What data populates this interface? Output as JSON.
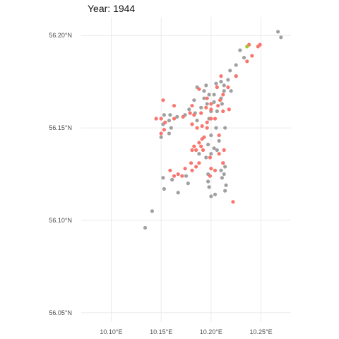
{
  "chart_data": {
    "type": "scatter",
    "title": "Year: 1944",
    "xlabel": "",
    "ylabel": "",
    "xlim": [
      10.07,
      10.28
    ],
    "ylim": [
      56.045,
      56.21
    ],
    "x_ticks": [
      10.1,
      10.15,
      10.2,
      10.25
    ],
    "x_tick_labels": [
      "10.10°E",
      "10.15°E",
      "10.20°E",
      "10.25°E"
    ],
    "y_ticks": [
      56.05,
      56.1,
      56.15,
      56.2
    ],
    "y_tick_labels": [
      "56.05°N",
      "56.10°N",
      "56.15°N",
      "56.20°N"
    ],
    "grid": true,
    "legend": "none",
    "colors": {
      "red": "#f8766d",
      "grey": "#a0a0a0",
      "green": "#a3c92b"
    },
    "series": [
      {
        "color_key": "grey",
        "points": [
          [
            10.267,
            56.202
          ],
          [
            10.27,
            56.199
          ],
          [
            10.229,
            56.192
          ],
          [
            10.233,
            56.188
          ],
          [
            10.225,
            56.184
          ],
          [
            10.219,
            56.181
          ],
          [
            10.225,
            56.178
          ],
          [
            10.217,
            56.176
          ],
          [
            10.21,
            56.175
          ],
          [
            10.205,
            56.174
          ],
          [
            10.213,
            56.173
          ],
          [
            10.195,
            56.173
          ],
          [
            10.186,
            56.172
          ],
          [
            10.193,
            56.17
          ],
          [
            10.213,
            56.17
          ],
          [
            10.22,
            56.17
          ],
          [
            10.203,
            56.168
          ],
          [
            10.198,
            56.168
          ],
          [
            10.21,
            56.166
          ],
          [
            10.193,
            56.166
          ],
          [
            10.183,
            56.165
          ],
          [
            10.203,
            56.164
          ],
          [
            10.196,
            56.163
          ],
          [
            10.211,
            56.163
          ],
          [
            10.19,
            56.161
          ],
          [
            10.2,
            56.159
          ],
          [
            10.206,
            56.159
          ],
          [
            10.178,
            56.16
          ],
          [
            10.184,
            56.158
          ],
          [
            10.174,
            56.157
          ],
          [
            10.159,
            56.157
          ],
          [
            10.153,
            56.157
          ],
          [
            10.166,
            56.156
          ],
          [
            10.198,
            56.155
          ],
          [
            10.186,
            56.154
          ],
          [
            10.158,
            56.154
          ],
          [
            10.152,
            56.152
          ],
          [
            10.16,
            56.15
          ],
          [
            10.205,
            56.15
          ],
          [
            10.214,
            56.15
          ],
          [
            10.158,
            56.147
          ],
          [
            10.2,
            56.146
          ],
          [
            10.15,
            56.145
          ],
          [
            10.208,
            56.143
          ],
          [
            10.197,
            56.141
          ],
          [
            10.203,
            56.139
          ],
          [
            10.206,
            56.138
          ],
          [
            10.2,
            56.136
          ],
          [
            10.188,
            56.136
          ],
          [
            10.195,
            56.134
          ],
          [
            10.212,
            56.131
          ],
          [
            10.214,
            56.129
          ],
          [
            10.21,
            56.127
          ],
          [
            10.213,
            56.125
          ],
          [
            10.197,
            56.125
          ],
          [
            10.175,
            56.124
          ],
          [
            10.211,
            56.123
          ],
          [
            10.152,
            56.123
          ],
          [
            10.197,
            56.121
          ],
          [
            10.177,
            56.12
          ],
          [
            10.215,
            56.119
          ],
          [
            10.198,
            56.118
          ],
          [
            10.214,
            56.116
          ],
          [
            10.153,
            56.117
          ],
          [
            10.161,
            56.122
          ],
          [
            10.204,
            56.114
          ],
          [
            10.167,
            56.115
          ],
          [
            10.2,
            56.113
          ],
          [
            10.141,
            56.105
          ],
          [
            10.134,
            56.096
          ]
        ]
      },
      {
        "color_key": "red",
        "points": [
          [
            10.249,
            56.195
          ],
          [
            10.247,
            56.194
          ],
          [
            10.238,
            56.195
          ],
          [
            10.241,
            56.189
          ],
          [
            10.236,
            56.186
          ],
          [
            10.225,
            56.178
          ],
          [
            10.21,
            56.178
          ],
          [
            10.217,
            56.172
          ],
          [
            10.206,
            56.172
          ],
          [
            10.188,
            56.171
          ],
          [
            10.212,
            56.168
          ],
          [
            10.209,
            56.165
          ],
          [
            10.196,
            56.166
          ],
          [
            10.207,
            56.162
          ],
          [
            10.2,
            56.163
          ],
          [
            10.181,
            56.162
          ],
          [
            10.195,
            56.161
          ],
          [
            10.2,
            56.16
          ],
          [
            10.212,
            56.159
          ],
          [
            10.218,
            56.16
          ],
          [
            10.163,
            56.162
          ],
          [
            10.152,
            56.165
          ],
          [
            10.19,
            56.158
          ],
          [
            10.179,
            56.158
          ],
          [
            10.183,
            56.157
          ],
          [
            10.172,
            56.156
          ],
          [
            10.163,
            56.155
          ],
          [
            10.15,
            56.155
          ],
          [
            10.145,
            56.155
          ],
          [
            10.154,
            56.153
          ],
          [
            10.204,
            56.155
          ],
          [
            10.2,
            56.155
          ],
          [
            10.196,
            56.153
          ],
          [
            10.181,
            56.152
          ],
          [
            10.191,
            56.151
          ],
          [
            10.196,
            56.15
          ],
          [
            10.186,
            56.15
          ],
          [
            10.153,
            56.149
          ],
          [
            10.15,
            56.147
          ],
          [
            10.208,
            56.146
          ],
          [
            10.193,
            56.145
          ],
          [
            10.191,
            56.144
          ],
          [
            10.188,
            56.142
          ],
          [
            10.183,
            56.14
          ],
          [
            10.19,
            56.14
          ],
          [
            10.185,
            56.138
          ],
          [
            10.192,
            56.138
          ],
          [
            10.181,
            56.138
          ],
          [
            10.213,
            56.138
          ],
          [
            10.208,
            56.136
          ],
          [
            10.199,
            56.134
          ],
          [
            10.212,
            56.131
          ],
          [
            10.188,
            56.131
          ],
          [
            10.18,
            56.131
          ],
          [
            10.185,
            56.129
          ],
          [
            10.2,
            56.128
          ],
          [
            10.181,
            56.127
          ],
          [
            10.174,
            56.128
          ],
          [
            10.159,
            56.127
          ],
          [
            10.163,
            56.124
          ],
          [
            10.167,
            56.125
          ],
          [
            10.171,
            56.124
          ],
          [
            10.199,
            56.124
          ],
          [
            10.204,
            56.127
          ],
          [
            10.222,
            56.11
          ]
        ]
      },
      {
        "color_key": "green",
        "points": [
          [
            10.236,
            56.194
          ]
        ]
      }
    ]
  }
}
